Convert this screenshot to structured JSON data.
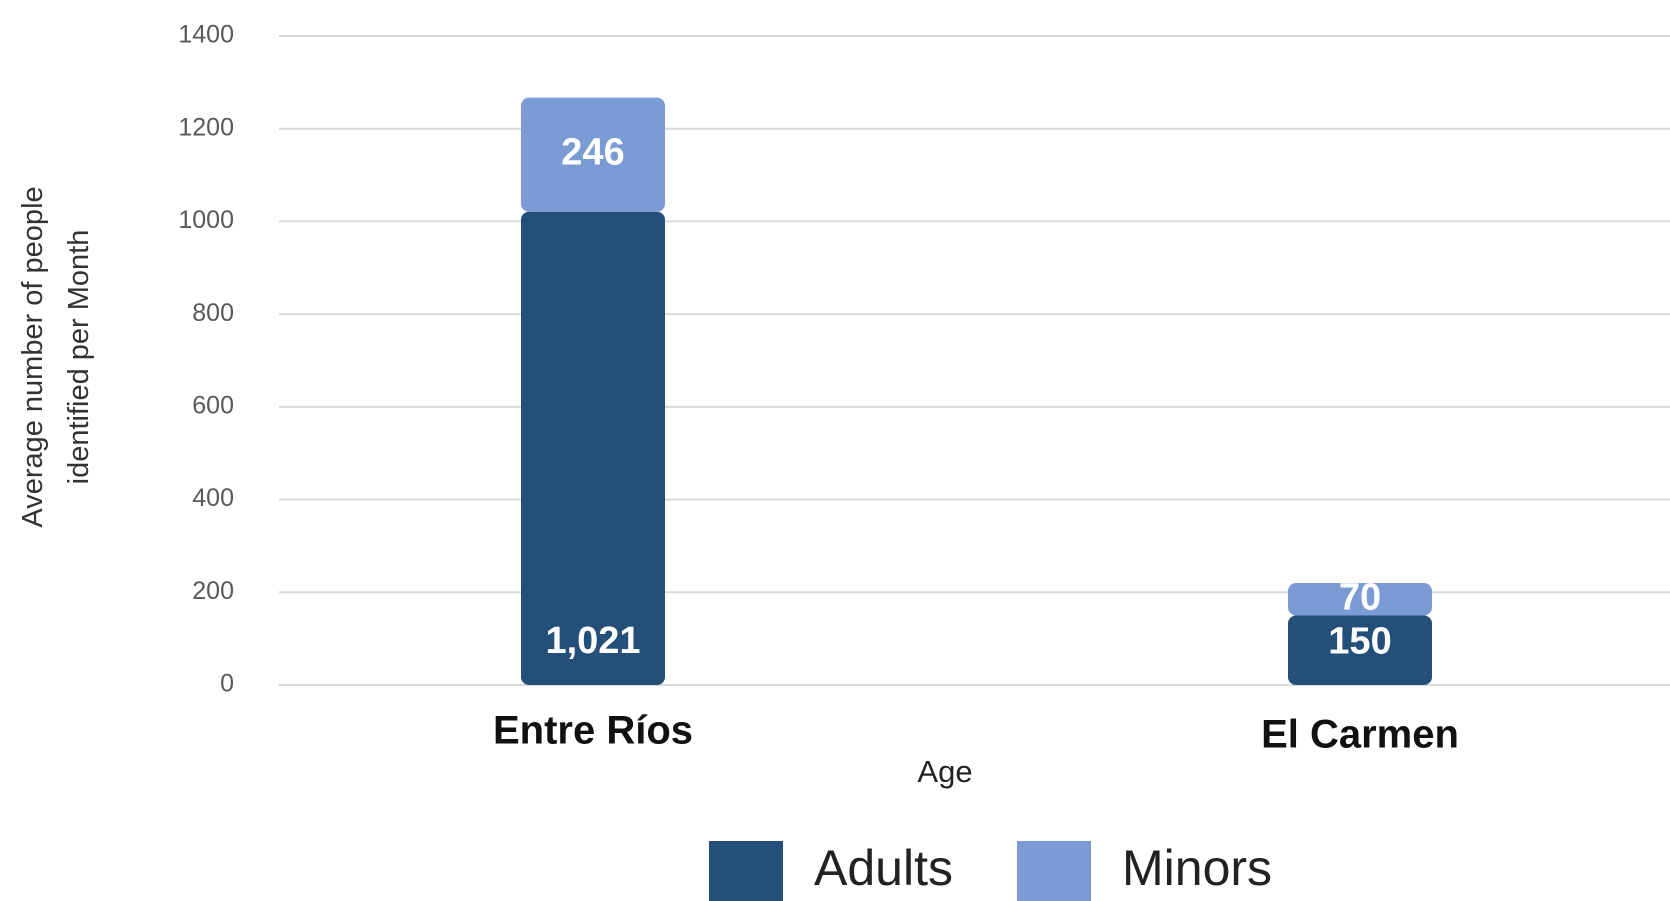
{
  "chart_data": {
    "type": "stacked_bar",
    "categories": [
      "Entre Ríos",
      "El Carmen"
    ],
    "series": [
      {
        "name": "Adults",
        "color": "#234f78",
        "values": [
          1021,
          150
        ],
        "value_labels": [
          "1,021",
          "150"
        ]
      },
      {
        "name": "Minors",
        "color": "#7a9bd4",
        "values": [
          246,
          70
        ]
      }
    ],
    "xlabel": "Age",
    "ylabel": [
      "Average number of people",
      "identified per Month"
    ],
    "ylim": [
      0,
      1400
    ],
    "yticks": [
      0,
      200,
      400,
      600,
      800,
      1000,
      1200,
      1400
    ],
    "grid": true,
    "legend": "bottom"
  }
}
